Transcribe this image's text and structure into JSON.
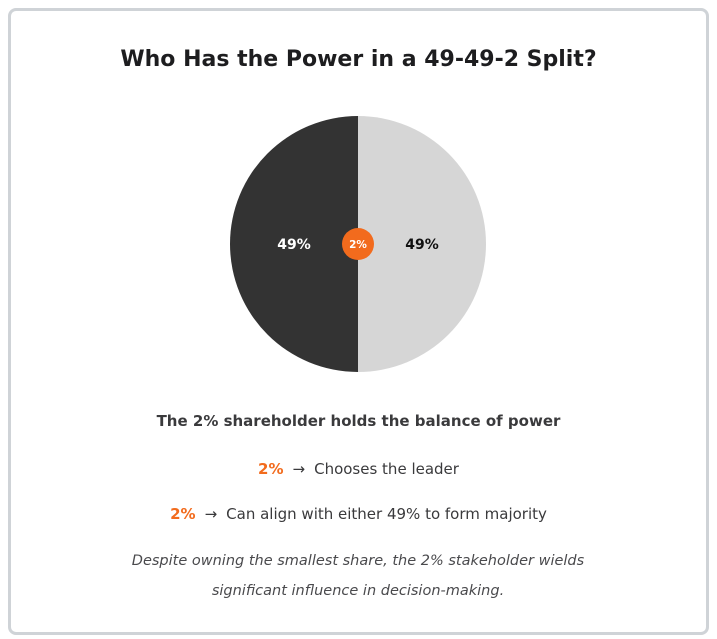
{
  "colors": {
    "dark_slice": "#333333",
    "light_slice": "#d6d6d6",
    "accent": "#f26b1d",
    "border": "#cfd3d7"
  },
  "chart_data": {
    "type": "pie",
    "title": "Who Has the Power in a 49-49-2 Split?",
    "slices": [
      {
        "label": "49%",
        "value": 49,
        "color": "#333333",
        "text_color": "#ffffff"
      },
      {
        "label": "49%",
        "value": 49,
        "color": "#d6d6d6",
        "text_color": "#111111"
      },
      {
        "label": "2%",
        "value": 2,
        "color": "#f26b1d",
        "text_color": "#ffffff"
      }
    ]
  },
  "summary": {
    "headline": "The 2% shareholder holds the balance of power",
    "points": [
      {
        "pct": "2%",
        "arrow": "→",
        "text": "Chooses the leader"
      },
      {
        "pct": "2%",
        "arrow": "→",
        "text": "Can align with either 49% to form majority"
      }
    ],
    "note": "Despite owning the smallest share, the 2% stakeholder wields significant influence in decision-making."
  }
}
